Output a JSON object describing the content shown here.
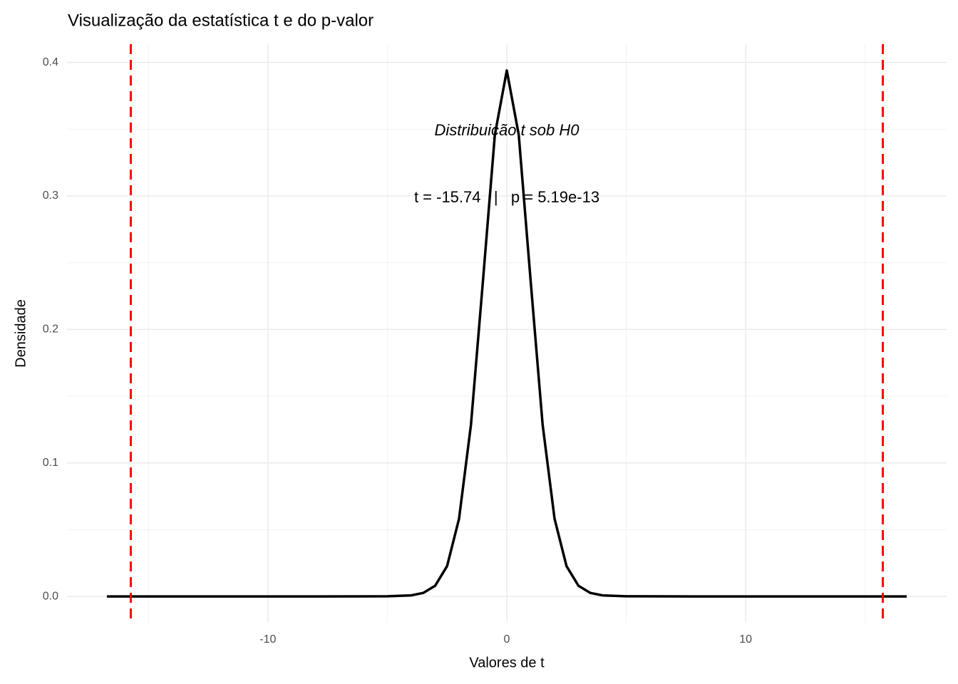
{
  "chart_data": {
    "type": "line",
    "title": "Visualização da estatística t e do p-valor",
    "x_label": "Valores de t",
    "y_label": "Densidade",
    "x": [
      -16.74,
      -8,
      -5,
      -4,
      -3.5,
      -3,
      -2.5,
      -2,
      -1.5,
      -1,
      -0.5,
      0,
      0.5,
      1,
      1.5,
      2,
      2.5,
      3,
      3.5,
      4,
      5,
      8,
      16.74
    ],
    "series": [
      {
        "color": "#000000",
        "values": [
          0,
          0,
          0.0001,
          0.0008,
          0.0026,
          0.008,
          0.0227,
          0.0581,
          0.1286,
          0.236,
          0.3458,
          0.394,
          0.3458,
          0.236,
          0.1286,
          0.0581,
          0.0227,
          0.008,
          0.0026,
          0.0008,
          0.0001,
          0,
          0
        ]
      }
    ],
    "vlines": {
      "color": "#ff0000",
      "values": [
        -15.74,
        15.74
      ]
    },
    "annotations": [
      "Distribuição t sob H0",
      "t = -15.74   |   p = 5.19e-13"
    ],
    "xlim": [
      -18.41,
      18.41
    ],
    "ylim": [
      -0.0197,
      0.4137
    ],
    "xticks": [
      -10,
      0,
      10
    ],
    "xminor": [
      -15,
      -5,
      5,
      15
    ],
    "yticks": [
      {
        "value": 0,
        "label": "0.0"
      },
      0.1,
      0.2,
      0.3,
      0.4
    ],
    "yminor": [
      0.05,
      0.15,
      0.25,
      0.35
    ],
    "grid": true
  }
}
